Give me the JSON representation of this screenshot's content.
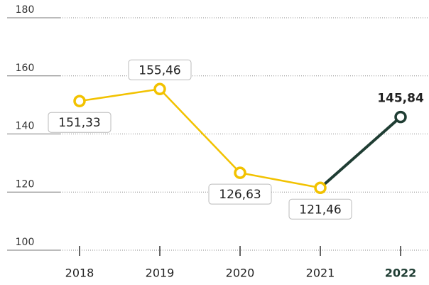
{
  "chart_data": {
    "type": "line",
    "categories": [
      "2018",
      "2019",
      "2020",
      "2021",
      "2022"
    ],
    "values": [
      151.33,
      155.46,
      126.63,
      121.46,
      145.84
    ],
    "value_labels": [
      "151,33",
      "155,46",
      "126,63",
      "121,46",
      "145,84"
    ],
    "color": "#f2c200",
    "highlight": {
      "index": 4,
      "color": "#1f3d33"
    },
    "ylim": [
      100,
      180
    ],
    "yticks": [
      100,
      120,
      140,
      160,
      180
    ],
    "grid": true
  }
}
